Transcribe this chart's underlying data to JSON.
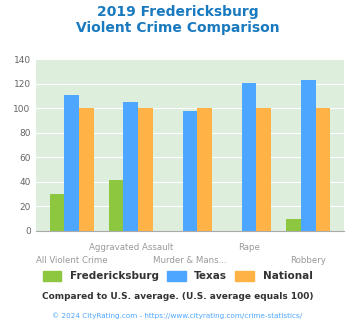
{
  "title_line1": "2019 Fredericksburg",
  "title_line2": "Violent Crime Comparison",
  "title_color": "#1a7abf",
  "categories": [
    "All Violent Crime",
    "Aggravated Assault",
    "Murder & Mans...",
    "Rape",
    "Robbery"
  ],
  "fredericksburg": [
    30,
    42,
    0,
    0,
    10
  ],
  "texas": [
    111,
    105,
    98,
    121,
    123
  ],
  "national": [
    100,
    100,
    100,
    100,
    100
  ],
  "fred_color": "#8dc63f",
  "texas_color": "#4da6ff",
  "national_color": "#ffb347",
  "ylim": [
    0,
    140
  ],
  "yticks": [
    0,
    20,
    40,
    60,
    80,
    100,
    120,
    140
  ],
  "plot_bg": "#ddeedd",
  "footnote": "Compared to U.S. average. (U.S. average equals 100)",
  "footnote2": "© 2024 CityRating.com - https://www.cityrating.com/crime-statistics/",
  "footnote_color": "#333333",
  "footnote2_color": "#4da6ff",
  "bar_width": 0.25
}
